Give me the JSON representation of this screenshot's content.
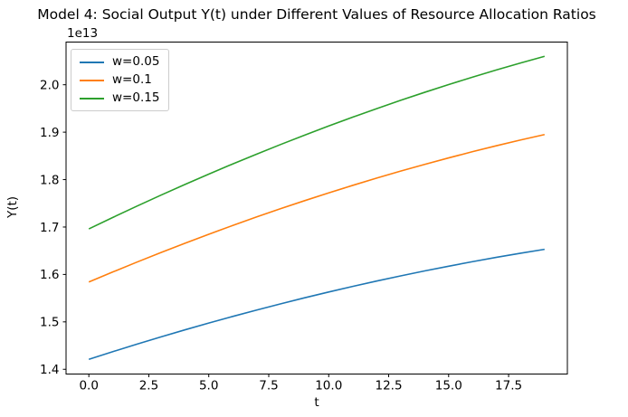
{
  "figure": {
    "title": "Model 4: Social Output Y(t) under Different Values of Resource Allocation Ratios",
    "offset_text": "1e13",
    "xlabel": "t",
    "ylabel": "Y(t)"
  },
  "legend": {
    "position": "upper left",
    "items": [
      {
        "label": "w=0.05",
        "color": "#1f77b4"
      },
      {
        "label": "w=0.1",
        "color": "#ff7f0e"
      },
      {
        "label": "w=0.15",
        "color": "#2ca02c"
      }
    ]
  },
  "chart_data": {
    "type": "line",
    "title": "Model 4: Social Output Y(t) under Different Values of Resource Allocation Ratios",
    "xlabel": "t",
    "ylabel": "Y(t)",
    "y_unit_scale": "1e13",
    "grid": false,
    "legend_position": "upper left",
    "xlim": [
      -0.95,
      19.95
    ],
    "ylim": [
      1.39,
      2.09
    ],
    "xticks": [
      "0.0",
      "2.5",
      "5.0",
      "7.5",
      "10.0",
      "12.5",
      "15.0",
      "17.5"
    ],
    "yticks": [
      "1.4",
      "1.5",
      "1.6",
      "1.7",
      "1.8",
      "1.9",
      "2.0"
    ],
    "x": [
      0,
      1,
      2,
      3,
      4,
      5,
      6,
      7,
      8,
      9,
      10,
      11,
      12,
      13,
      14,
      15,
      16,
      17,
      18,
      19
    ],
    "series": [
      {
        "name": "w=0.05",
        "color": "#1f77b4",
        "values": [
          1.421,
          1.4372,
          1.4529,
          1.4682,
          1.4831,
          1.4975,
          1.5115,
          1.525,
          1.5381,
          1.5508,
          1.563,
          1.5748,
          1.5861,
          1.597,
          1.6074,
          1.6174,
          1.627,
          1.6361,
          1.6448,
          1.653
        ]
      },
      {
        "name": "w=0.1",
        "color": "#ff7f0e",
        "values": [
          1.584,
          1.6052,
          1.6259,
          1.6461,
          1.6657,
          1.6848,
          1.7033,
          1.7213,
          1.7387,
          1.7556,
          1.772,
          1.7878,
          1.8031,
          1.8179,
          1.8321,
          1.8457,
          1.8589,
          1.8715,
          1.8835,
          1.895
        ]
      },
      {
        "name": "w=0.15",
        "color": "#2ca02c",
        "values": [
          1.696,
          1.7202,
          1.7439,
          1.7671,
          1.7896,
          1.8116,
          1.833,
          1.8538,
          1.8741,
          1.8938,
          1.913,
          1.9316,
          1.9496,
          1.9671,
          1.984,
          2.0003,
          2.0161,
          2.0313,
          2.0459,
          2.06
        ]
      }
    ]
  }
}
